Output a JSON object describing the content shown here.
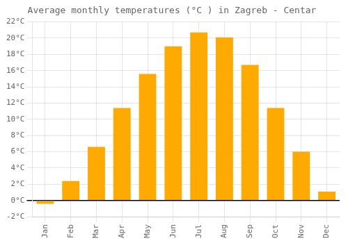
{
  "chart_data": {
    "type": "bar",
    "title": "Average monthly temperatures (°C ) in Zagreb - Centar",
    "categories": [
      "Jan",
      "Feb",
      "Mar",
      "Apr",
      "May",
      "Jun",
      "Jul",
      "Aug",
      "Sep",
      "Oct",
      "Nov",
      "Dec"
    ],
    "values": [
      -0.4,
      2.4,
      6.6,
      11.4,
      15.6,
      19.0,
      20.7,
      20.1,
      16.7,
      11.4,
      6.0,
      1.1
    ],
    "color": "#FFAA00",
    "ylim": [
      -2,
      22
    ],
    "yticks": [
      {
        "value": -2,
        "label": "-2°C"
      },
      {
        "value": 0,
        "label": "0°C"
      },
      {
        "value": 2,
        "label": "2°C"
      },
      {
        "value": 4,
        "label": "4°C"
      },
      {
        "value": 6,
        "label": "6°C"
      },
      {
        "value": 8,
        "label": "8°C"
      },
      {
        "value": 10,
        "label": "10°C"
      },
      {
        "value": 12,
        "label": "12°C"
      },
      {
        "value": 14,
        "label": "14°C"
      },
      {
        "value": 16,
        "label": "16°C"
      },
      {
        "value": 18,
        "label": "18°C"
      },
      {
        "value": 20,
        "label": "20°C"
      },
      {
        "value": 22,
        "label": "22°C"
      }
    ],
    "grid": true
  }
}
